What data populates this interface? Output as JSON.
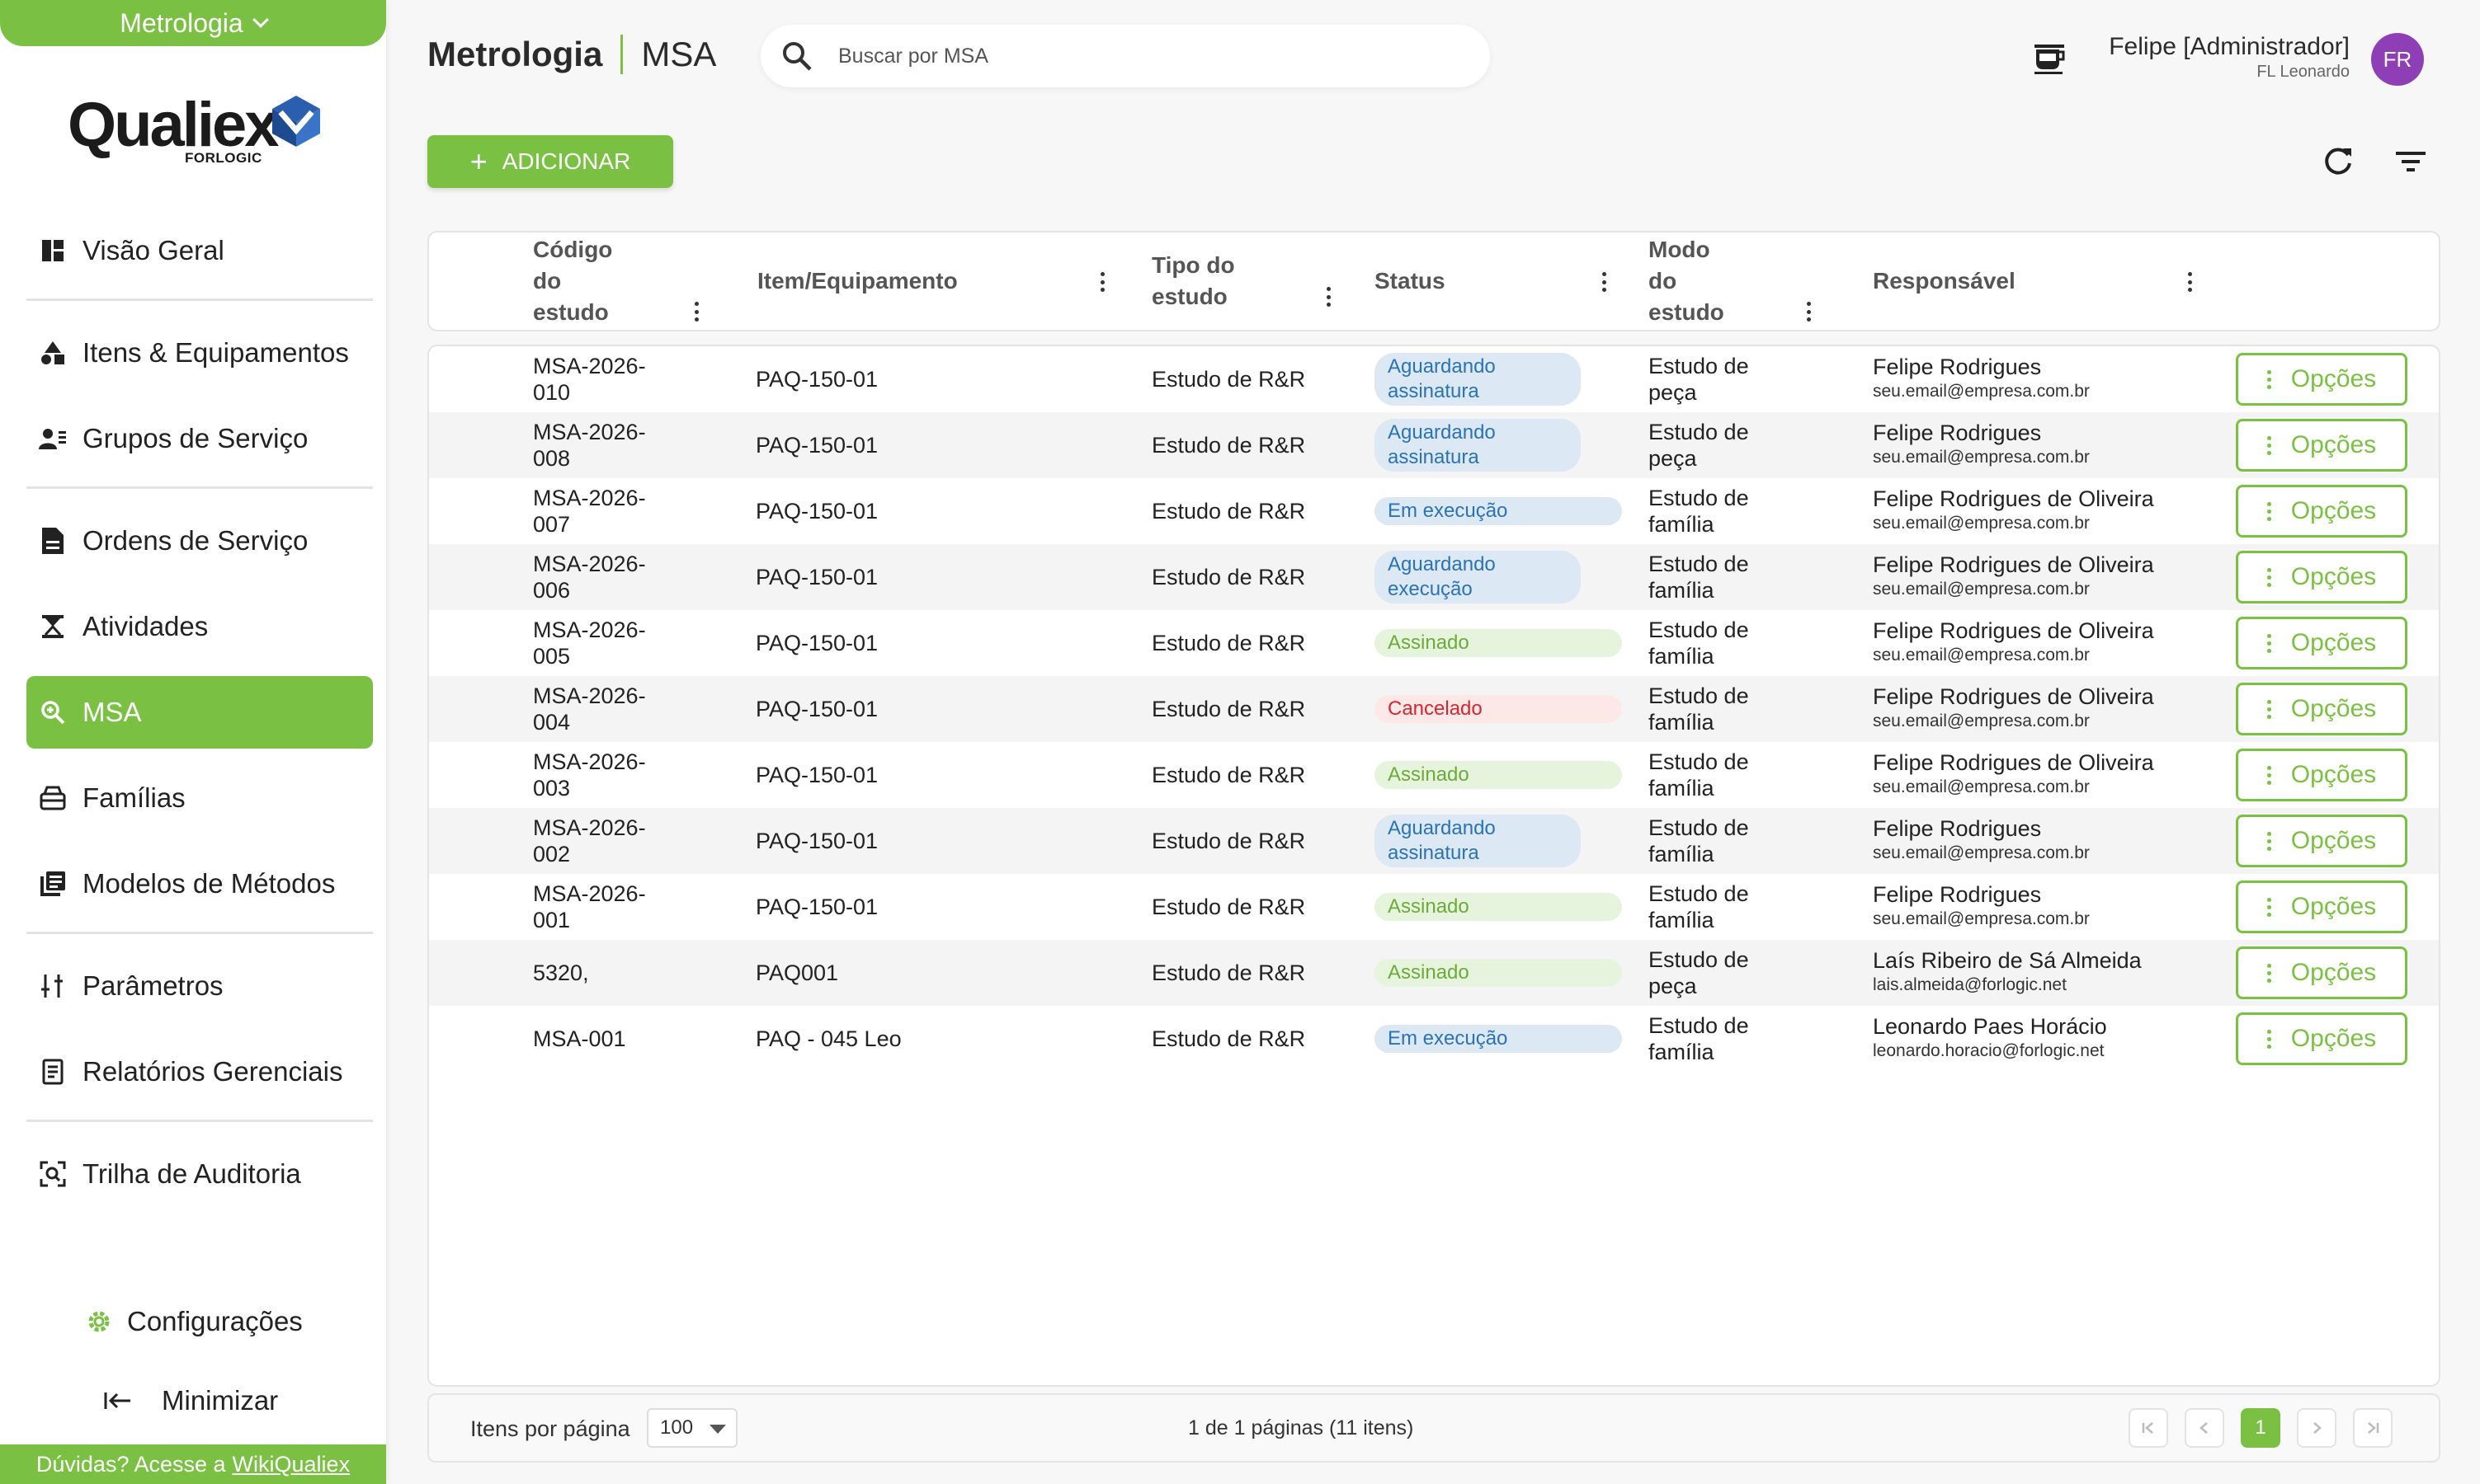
{
  "sidebar": {
    "module": "Metrologia",
    "logo_word": "Qualiex",
    "logo_sub": "FORLOGIC",
    "items": [
      {
        "label": "Visão Geral"
      },
      {
        "label": "Itens & Equipamentos"
      },
      {
        "label": "Grupos de Serviço"
      },
      {
        "label": "Ordens de Serviço"
      },
      {
        "label": "Atividades"
      },
      {
        "label": "MSA"
      },
      {
        "label": "Famílias"
      },
      {
        "label": "Modelos de Métodos"
      },
      {
        "label": "Parâmetros"
      },
      {
        "label": "Relatórios Gerenciais"
      },
      {
        "label": "Trilha de Auditoria"
      }
    ],
    "config_label": "Configurações",
    "minimize_label": "Minimizar",
    "help_text": "Dúvidas? Acesse a",
    "help_link": "WikiQualiex"
  },
  "header": {
    "module": "Metrologia",
    "page": "MSA",
    "search_placeholder": "Buscar por MSA",
    "user_name": "Felipe [Administrador]",
    "user_company": "FL Leonardo",
    "avatar_initials": "FR"
  },
  "toolbar": {
    "add_label": "ADICIONAR"
  },
  "table": {
    "columns": {
      "code": "Código do estudo",
      "item": "Item/Equipamento",
      "type": "Tipo do estudo",
      "status": "Status",
      "mode": "Modo do estudo",
      "responsible": "Responsável"
    },
    "options_label": "Opções",
    "rows": [
      {
        "code": "MSA-2026-010",
        "item": "PAQ-150-01",
        "type": "Estudo de R&R",
        "status": "Aguardando assinatura",
        "mode": "Estudo de peça",
        "resp": "Felipe Rodrigues",
        "email": "seu.email@empresa.com.br"
      },
      {
        "code": "MSA-2026-008",
        "item": "PAQ-150-01",
        "type": "Estudo de R&R",
        "status": "Aguardando assinatura",
        "mode": "Estudo de peça",
        "resp": "Felipe Rodrigues",
        "email": "seu.email@empresa.com.br"
      },
      {
        "code": "MSA-2026-007",
        "item": "PAQ-150-01",
        "type": "Estudo de R&R",
        "status": "Em execução",
        "mode": "Estudo de família",
        "resp": "Felipe Rodrigues de Oliveira",
        "email": "seu.email@empresa.com.br"
      },
      {
        "code": "MSA-2026-006",
        "item": "PAQ-150-01",
        "type": "Estudo de R&R",
        "status": "Aguardando execução",
        "mode": "Estudo de família",
        "resp": "Felipe Rodrigues de Oliveira",
        "email": "seu.email@empresa.com.br"
      },
      {
        "code": "MSA-2026-005",
        "item": "PAQ-150-01",
        "type": "Estudo de R&R",
        "status": "Assinado",
        "mode": "Estudo de família",
        "resp": "Felipe Rodrigues de Oliveira",
        "email": "seu.email@empresa.com.br"
      },
      {
        "code": "MSA-2026-004",
        "item": "PAQ-150-01",
        "type": "Estudo de R&R",
        "status": "Cancelado",
        "mode": "Estudo de família",
        "resp": "Felipe Rodrigues de Oliveira",
        "email": "seu.email@empresa.com.br"
      },
      {
        "code": "MSA-2026-003",
        "item": "PAQ-150-01",
        "type": "Estudo de R&R",
        "status": "Assinado",
        "mode": "Estudo de família",
        "resp": "Felipe Rodrigues de Oliveira",
        "email": "seu.email@empresa.com.br"
      },
      {
        "code": "MSA-2026-002",
        "item": "PAQ-150-01",
        "type": "Estudo de R&R",
        "status": "Aguardando assinatura",
        "mode": "Estudo de família",
        "resp": "Felipe Rodrigues",
        "email": "seu.email@empresa.com.br"
      },
      {
        "code": "MSA-2026-001",
        "item": "PAQ-150-01",
        "type": "Estudo de R&R",
        "status": "Assinado",
        "mode": "Estudo de família",
        "resp": "Felipe Rodrigues",
        "email": "seu.email@empresa.com.br"
      },
      {
        "code": "5320,",
        "item": "PAQ001",
        "type": "Estudo de R&R",
        "status": "Assinado",
        "mode": "Estudo de peça",
        "resp": "Laís Ribeiro de Sá Almeida",
        "email": "lais.almeida@forlogic.net"
      },
      {
        "code": "MSA-001",
        "item": "PAQ - 045 Leo",
        "type": "Estudo de R&R",
        "status": "Em execução",
        "mode": "Estudo de família",
        "resp": "Leonardo Paes Horácio",
        "email": "leonardo.horacio@forlogic.net"
      }
    ]
  },
  "pagination": {
    "items_per_page_label": "Itens por página",
    "items_per_page": "100",
    "info": "1 de 1 páginas (11 itens)",
    "current_page": "1"
  },
  "colors": {
    "accent": "#7ac143",
    "status_blue": "#2a73b5",
    "status_red": "#d7262e",
    "avatar": "#8e3fb5"
  }
}
